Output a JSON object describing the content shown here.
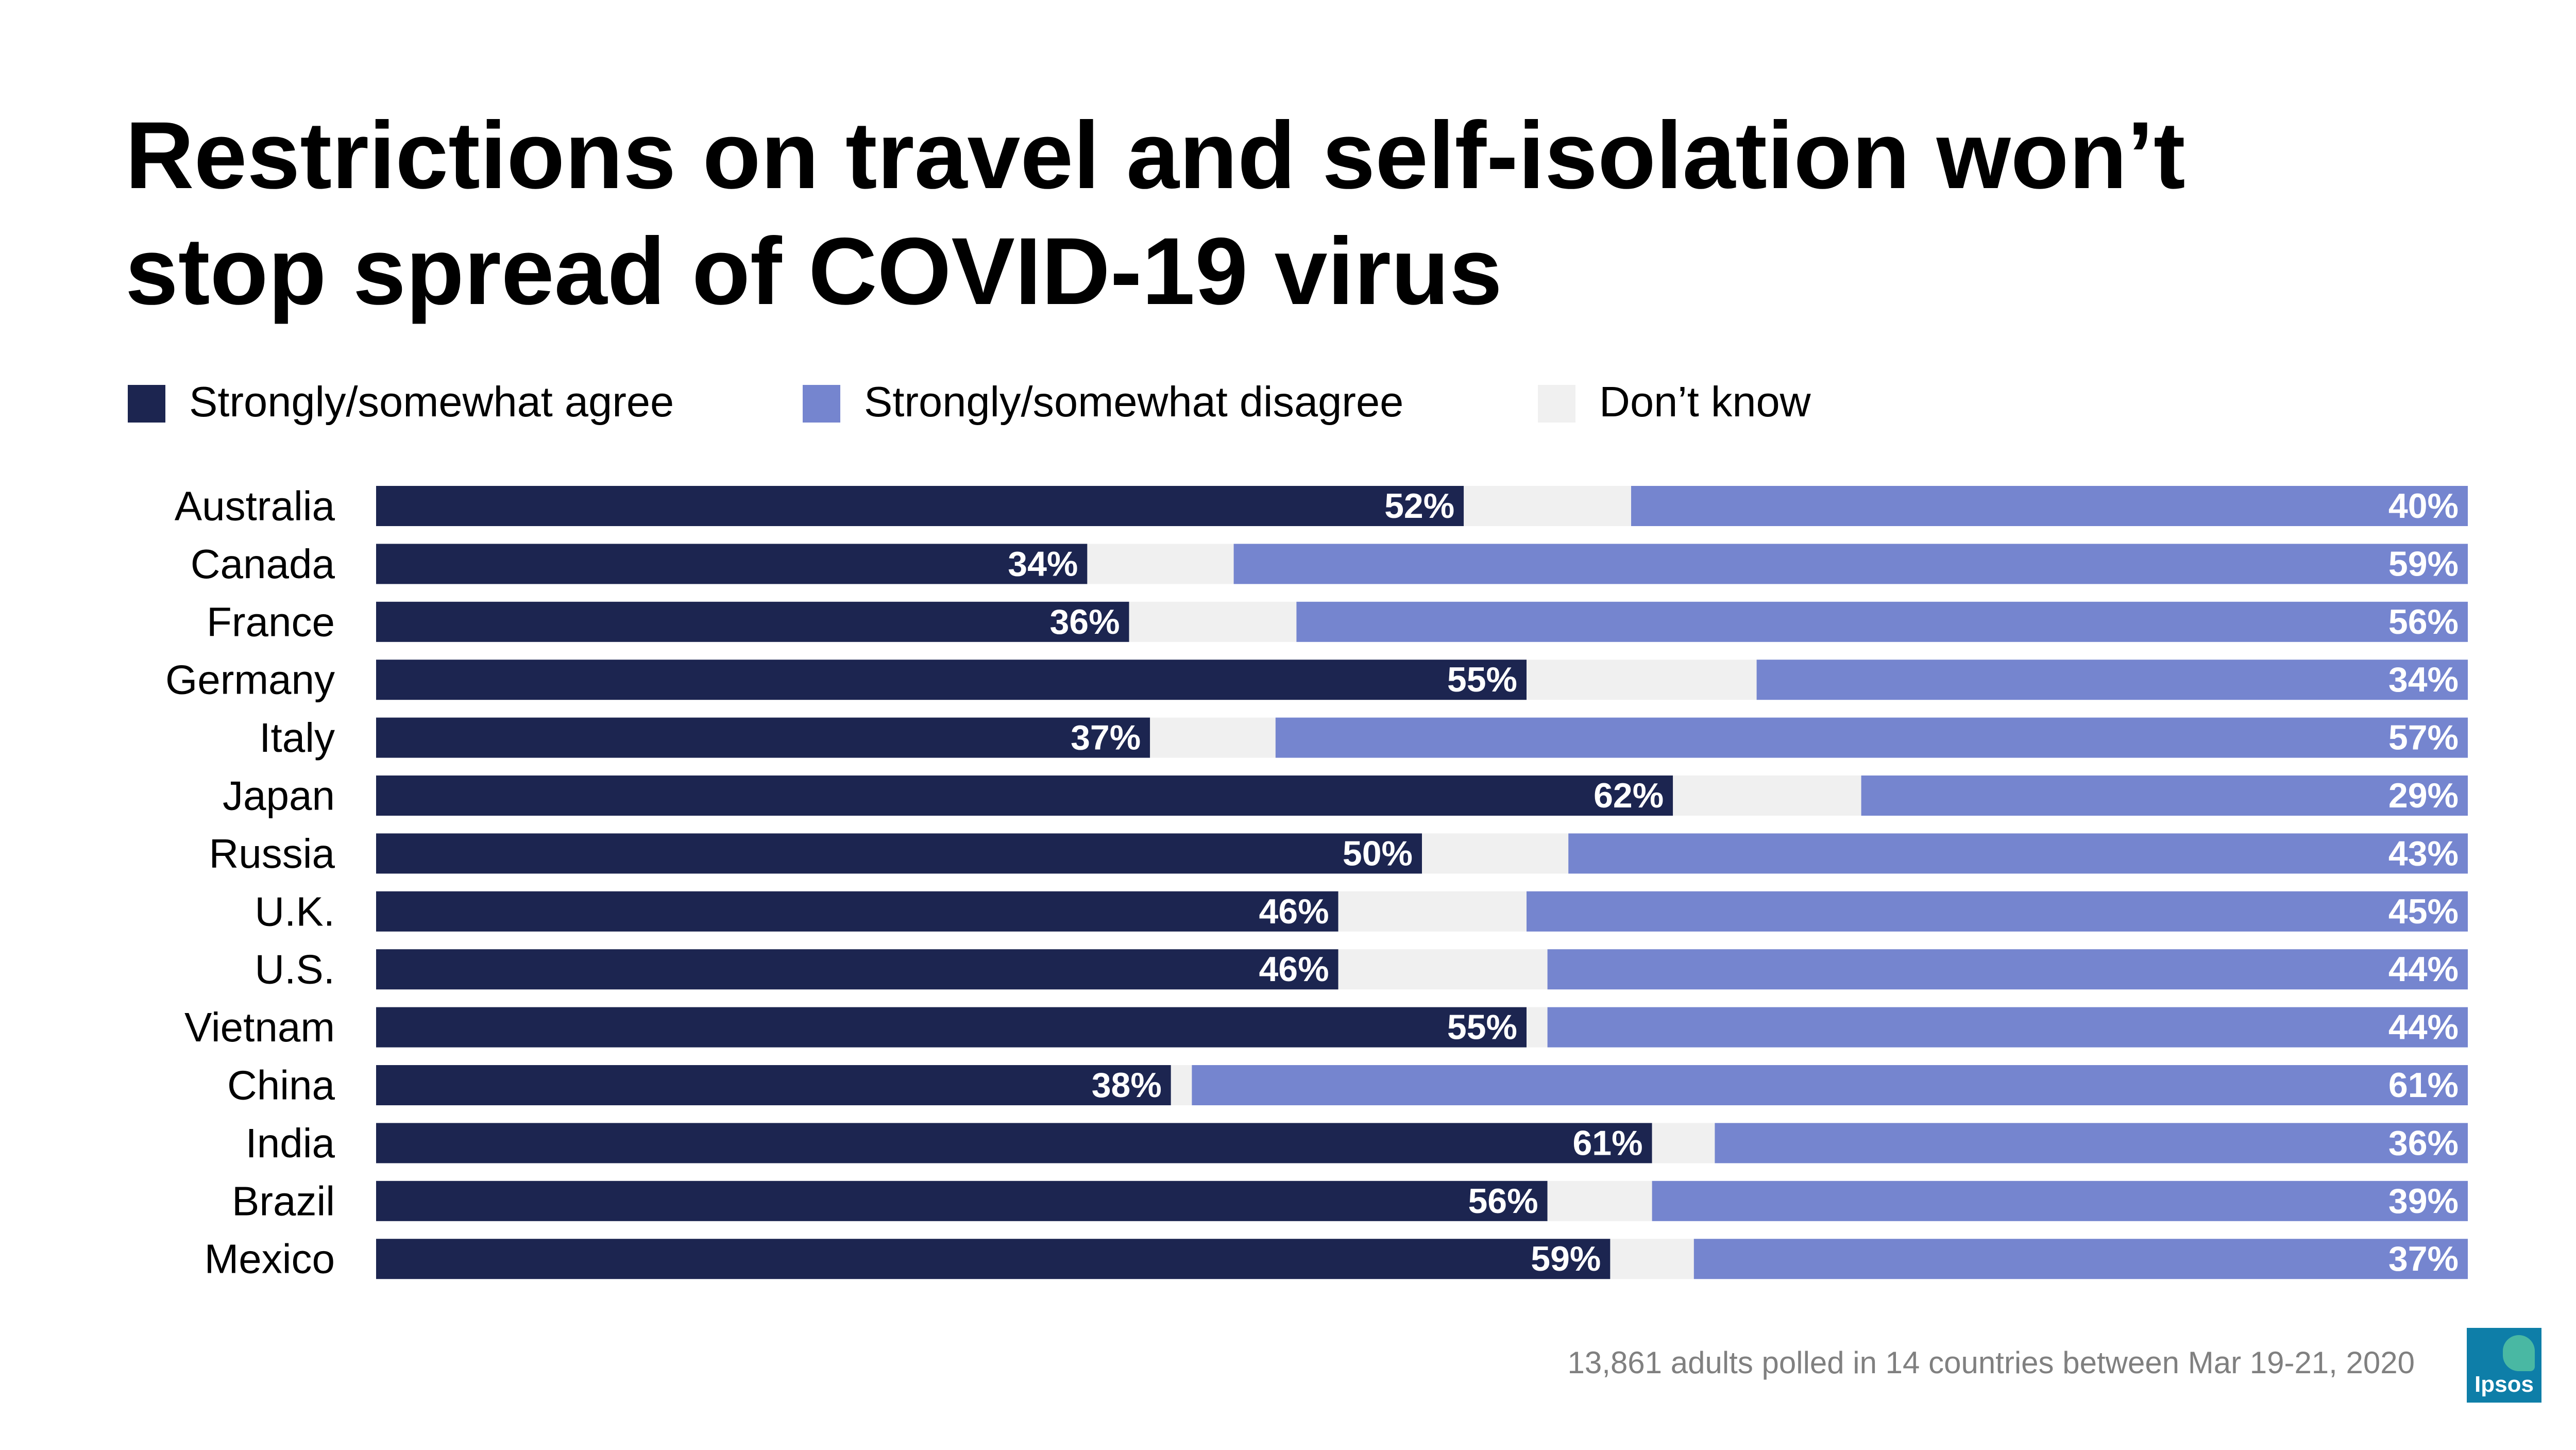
{
  "title_lines": [
    "Restrictions on travel and self-isolation won’t",
    "stop spread of COVID-19 virus"
  ],
  "legend": [
    {
      "label": "Strongly/somewhat agree",
      "color": "#1c2550"
    },
    {
      "label": "Strongly/somewhat disagree",
      "color": "#7585cf"
    },
    {
      "label": "Don’t know",
      "color": "#f0f0f0"
    }
  ],
  "footnote": "13,861 adults polled in 14 countries between Mar 19-21, 2020",
  "logo_text": "Ipsos",
  "chart_data": {
    "type": "bar",
    "orientation": "horizontal",
    "stacked": true,
    "categories": [
      "Australia",
      "Canada",
      "France",
      "Germany",
      "Italy",
      "Japan",
      "Russia",
      "U.K.",
      "U.S.",
      "Vietnam",
      "China",
      "India",
      "Brazil",
      "Mexico"
    ],
    "series": [
      {
        "name": "Strongly/somewhat agree",
        "color": "#1c2550",
        "values": [
          52,
          34,
          36,
          55,
          37,
          62,
          50,
          46,
          46,
          55,
          38,
          61,
          56,
          59
        ]
      },
      {
        "name": "Don’t know",
        "color": "#f0f0f0",
        "values": [
          8,
          7,
          8,
          11,
          6,
          9,
          7,
          9,
          10,
          1,
          1,
          3,
          5,
          4
        ]
      },
      {
        "name": "Strongly/somewhat disagree",
        "color": "#7585cf",
        "values": [
          40,
          59,
          56,
          34,
          57,
          29,
          43,
          45,
          44,
          44,
          61,
          36,
          39,
          37
        ]
      }
    ],
    "labeled_series": [
      "Strongly/somewhat agree",
      "Strongly/somewhat disagree"
    ],
    "value_suffix": "%",
    "xlim": [
      0,
      100
    ],
    "grid": false,
    "legend_position": "top"
  }
}
